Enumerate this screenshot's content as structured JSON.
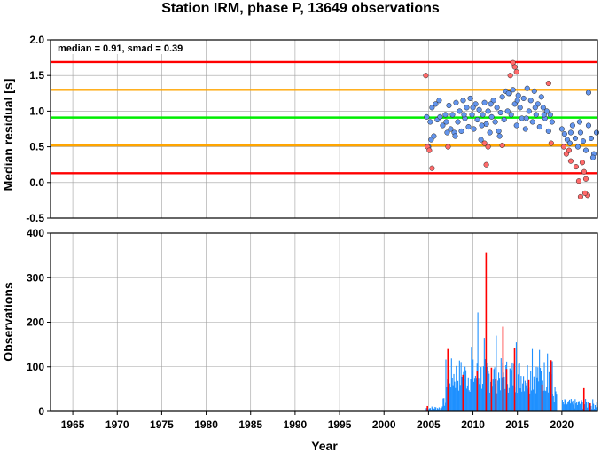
{
  "title": "Station IRM, phase P, 13649 observations",
  "chart_data": [
    {
      "type": "scatter",
      "ylabel": "Median residual [s]",
      "xlabel": "",
      "xlim": [
        1962.5,
        2024.0
      ],
      "ylim": [
        -0.5,
        2.0
      ],
      "yticks": [
        -0.5,
        0.0,
        0.5,
        1.0,
        1.5,
        2.0
      ],
      "ytick_labels": [
        "-0.5",
        "0.0",
        "0.5",
        "1.0",
        "1.5",
        "2.0"
      ],
      "grid": true,
      "annotation": "median = 0.91, smad = 0.39",
      "reference_lines": [
        {
          "y": 1.69,
          "color": "#ff0000"
        },
        {
          "y": 1.3,
          "color": "#ffa500"
        },
        {
          "y": 0.91,
          "color": "#00ee00"
        },
        {
          "y": 0.52,
          "color": "#ffa500"
        },
        {
          "y": 0.13,
          "color": "#ff0000"
        }
      ],
      "series": [
        {
          "color": "#6495ed",
          "x": [
            2004.8,
            2005.0,
            2005.2,
            2005.4,
            2005.6,
            2005.8,
            2006.0,
            2006.3,
            2006.6,
            2006.9,
            2007.1,
            2007.3,
            2007.5,
            2007.7,
            2007.9,
            2008.1,
            2008.3,
            2008.5,
            2008.7,
            2008.9,
            2009.1,
            2009.3,
            2009.5,
            2009.7,
            2009.9,
            2010.1,
            2010.3,
            2010.5,
            2010.7,
            2010.9,
            2011.1,
            2011.3,
            2011.5,
            2011.7,
            2011.9,
            2012.1,
            2012.3,
            2012.5,
            2012.7,
            2012.9,
            2013.1,
            2013.3,
            2013.5,
            2013.7,
            2013.9,
            2014.1,
            2014.3,
            2014.5,
            2014.7,
            2014.9,
            2015.1,
            2015.3,
            2015.5,
            2015.7,
            2015.9,
            2016.1,
            2016.3,
            2016.5,
            2016.7,
            2016.9,
            2017.1,
            2017.3,
            2017.5,
            2017.7,
            2017.9,
            2018.1,
            2018.3,
            2018.5,
            2018.7,
            2018.9,
            2020.0,
            2020.3,
            2020.6,
            2020.9,
            2021.2,
            2021.5,
            2021.8,
            2022.1,
            2022.4,
            2022.7,
            2023.0,
            2023.3,
            2023.6,
            2023.9,
            2005.3,
            2006.2,
            2007.0,
            2008.0,
            2009.0,
            2010.0,
            2011.0,
            2012.0,
            2013.0,
            2014.0,
            2015.0,
            2016.0,
            2017.0,
            2018.0,
            2021.0,
            2022.0,
            2023.0,
            2023.5
          ],
          "y": [
            0.92,
            0.5,
            0.85,
            1.05,
            0.65,
            1.1,
            0.88,
            0.92,
            0.8,
            0.95,
            0.7,
            1.08,
            0.75,
            0.95,
            0.7,
            1.12,
            0.85,
            1.0,
            0.72,
            1.15,
            0.9,
            1.05,
            0.78,
            1.18,
            0.95,
            0.75,
            1.1,
            0.88,
            1.02,
            0.6,
            0.95,
            1.12,
            0.82,
            1.0,
            0.7,
            0.92,
            1.15,
            0.85,
            1.05,
            0.72,
            0.98,
            1.2,
            0.88,
            1.28,
            1.0,
            1.25,
            0.95,
            1.3,
            1.1,
            0.8,
            1.22,
            1.05,
            0.9,
            1.18,
            0.75,
            1.32,
            1.0,
            1.15,
            0.85,
            1.28,
            0.95,
            1.1,
            0.78,
            1.2,
            1.05,
            0.9,
            1.0,
            0.72,
            0.95,
            0.85,
            0.75,
            0.68,
            0.6,
            0.55,
            0.8,
            0.62,
            0.5,
            0.7,
            0.58,
            0.45,
            0.8,
            0.62,
            0.4,
            0.7,
            0.6,
            1.15,
            0.85,
            0.65,
            0.95,
            1.05,
            0.8,
            1.1,
            0.65,
            1.25,
            1.15,
            0.9,
            1.05,
            0.95,
            0.7,
            0.85,
            1.26,
            0.35
          ]
        },
        {
          "color": "#ff6a6a",
          "x": [
            2004.7,
            2004.9,
            2005.1,
            2005.4,
            2007.2,
            2011.3,
            2011.5,
            2011.7,
            2013.3,
            2014.2,
            2014.5,
            2014.7,
            2014.9,
            2018.5,
            2018.8,
            2020.2,
            2020.5,
            2020.8,
            2021.0,
            2021.6,
            2021.9,
            2022.1,
            2022.3,
            2022.5,
            2022.7,
            2022.9,
            2022.6
          ],
          "y": [
            1.5,
            0.5,
            0.45,
            0.2,
            0.5,
            0.55,
            0.25,
            0.5,
            0.52,
            1.5,
            1.68,
            1.62,
            1.55,
            1.39,
            0.55,
            0.5,
            0.4,
            0.45,
            0.3,
            0.22,
            0.02,
            -0.2,
            0.28,
            0.15,
            0.05,
            -0.18,
            -0.15
          ]
        }
      ]
    },
    {
      "type": "bar",
      "xlabel": "Year",
      "ylabel": "Observations",
      "xlim": [
        1962.5,
        2024.0
      ],
      "ylim": [
        0,
        400
      ],
      "yticks": [
        0,
        100,
        200,
        300,
        400
      ],
      "ytick_labels": [
        "0",
        "100",
        "200",
        "300",
        "400"
      ],
      "xticks": [
        1965,
        1970,
        1975,
        1980,
        1985,
        1990,
        1995,
        2000,
        2005,
        2010,
        2015,
        2020
      ],
      "xtick_labels": [
        "1965",
        "1970",
        "1975",
        "1980",
        "1985",
        "1990",
        "1995",
        "2000",
        "2005",
        "2010",
        "2015",
        "2020"
      ],
      "grid": true,
      "series": [
        {
          "color": "#1e90ff",
          "segments": [
            {
              "from": 2004.7,
              "to": 2006.5,
              "min": 3,
              "max": 12
            },
            {
              "from": 2006.5,
              "to": 2006.9,
              "min": 10,
              "max": 30
            },
            {
              "from": 2006.9,
              "to": 2018.9,
              "min": 40,
              "max": 120
            },
            {
              "from": 2018.9,
              "to": 2019.4,
              "min": 15,
              "max": 60
            },
            {
              "from": 2020.0,
              "to": 2024.0,
              "min": 5,
              "max": 28
            }
          ],
          "peaks": [
            [
              2009.8,
              145
            ],
            [
              2010.5,
              222
            ],
            [
              2011.2,
              165
            ],
            [
              2012.6,
              170
            ],
            [
              2014.8,
              155
            ],
            [
              2016.6,
              140
            ],
            [
              2017.4,
              138
            ],
            [
              2018.3,
              130
            ]
          ]
        },
        {
          "color": "#ff0000",
          "spikes": [
            [
              2004.8,
              12
            ],
            [
              2007.1,
              140
            ],
            [
              2008.8,
              82
            ],
            [
              2010.4,
              90
            ],
            [
              2011.4,
              357
            ],
            [
              2012.0,
              98
            ],
            [
              2012.5,
              72
            ],
            [
              2013.3,
              190
            ],
            [
              2013.7,
              95
            ],
            [
              2014.6,
              143
            ],
            [
              2016.2,
              70
            ],
            [
              2017.7,
              60
            ],
            [
              2018.7,
              115
            ],
            [
              2022.4,
              52
            ],
            [
              2023.1,
              18
            ]
          ]
        }
      ]
    }
  ]
}
